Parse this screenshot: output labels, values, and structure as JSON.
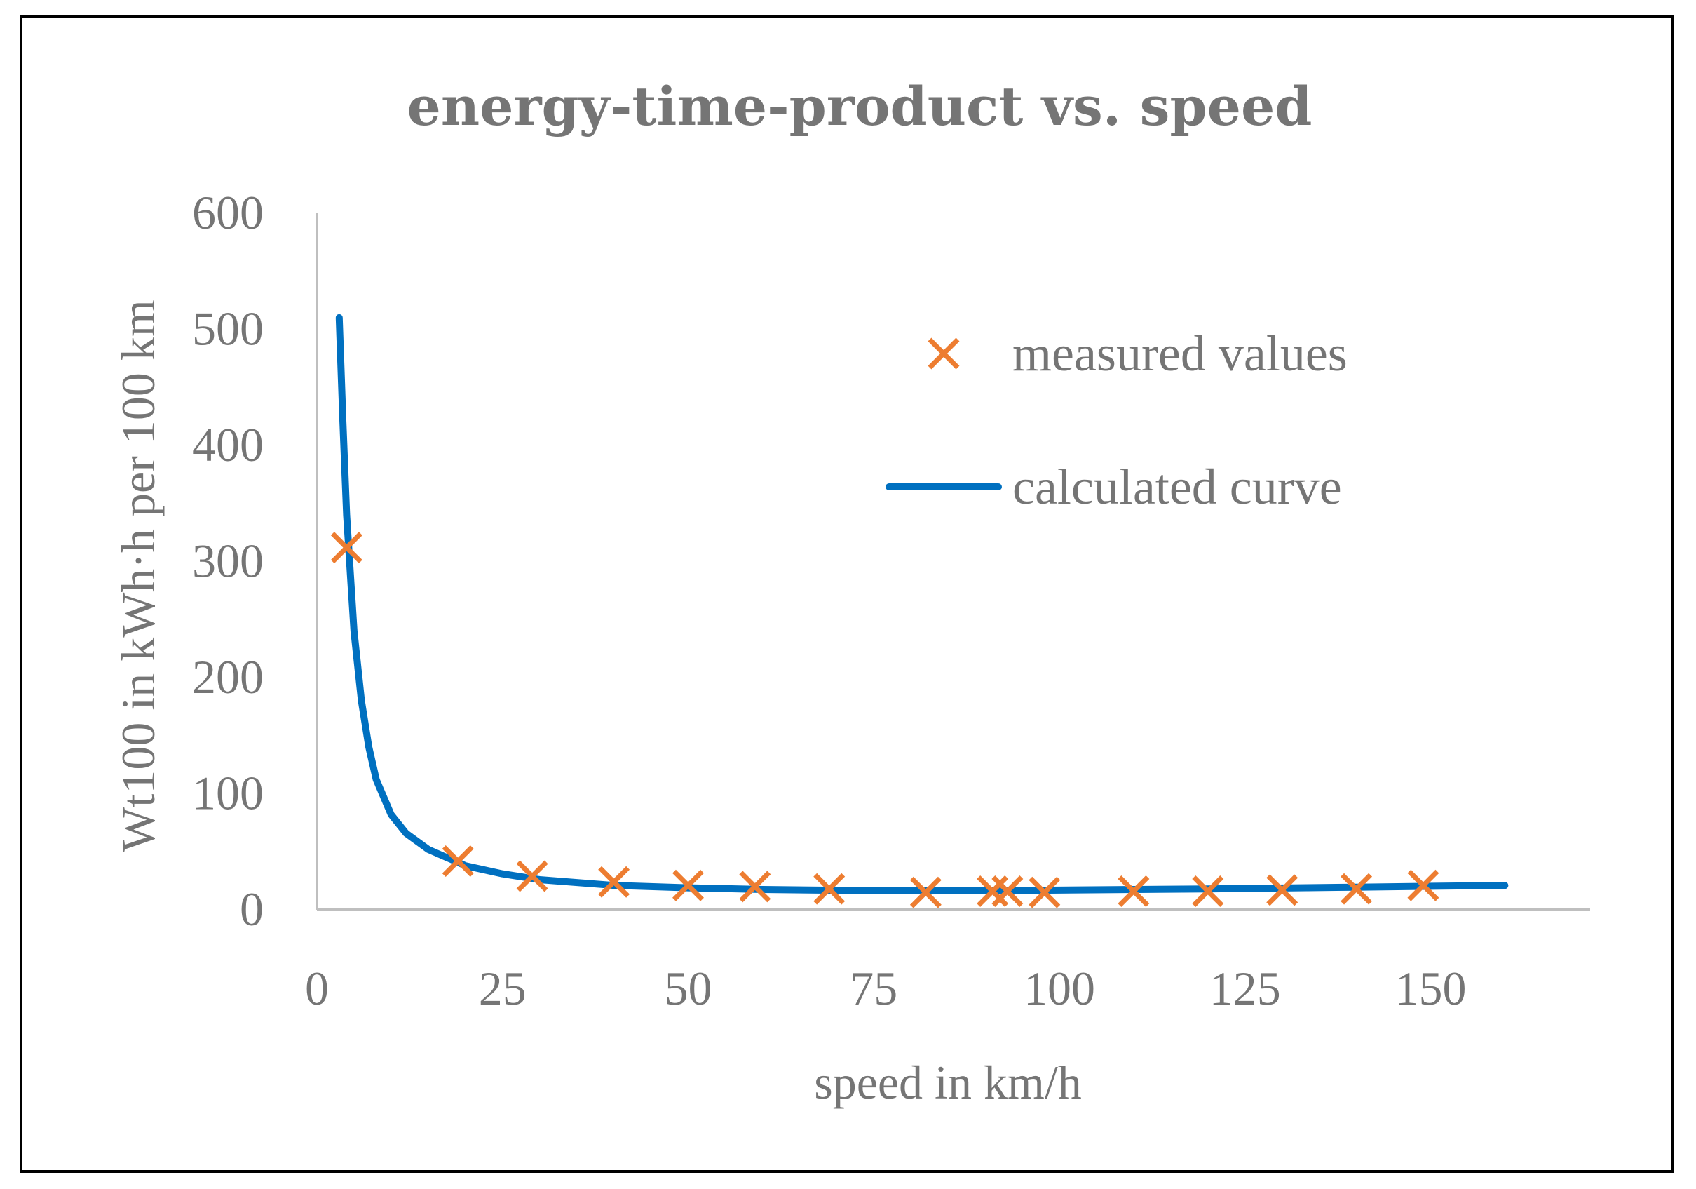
{
  "chart_data": {
    "type": "scatter",
    "title": "energy-time-product vs. speed",
    "xlabel": "speed in km/h",
    "ylabel": "Wt100 in kWh·h per 100 km",
    "xlim": [
      0,
      170
    ],
    "ylim": [
      0,
      600
    ],
    "xticks": [
      "0",
      "25",
      "50",
      "75",
      "100",
      "125",
      "150"
    ],
    "yticks": [
      "0",
      "100",
      "200",
      "300",
      "400",
      "500",
      "600"
    ],
    "grid": false,
    "legend_position": "top-right",
    "series": [
      {
        "name": "measured values",
        "kind": "markers",
        "marker": "x",
        "color": "#ED7D31",
        "points": [
          {
            "x": 4,
            "y": 312
          },
          {
            "x": 19,
            "y": 42
          },
          {
            "x": 29,
            "y": 29
          },
          {
            "x": 40,
            "y": 24
          },
          {
            "x": 50,
            "y": 21
          },
          {
            "x": 59,
            "y": 20
          },
          {
            "x": 69,
            "y": 18
          },
          {
            "x": 82,
            "y": 15
          },
          {
            "x": 91,
            "y": 16
          },
          {
            "x": 93,
            "y": 16
          },
          {
            "x": 98,
            "y": 15
          },
          {
            "x": 110,
            "y": 16
          },
          {
            "x": 120,
            "y": 16
          },
          {
            "x": 130,
            "y": 17
          },
          {
            "x": 140,
            "y": 18
          },
          {
            "x": 149,
            "y": 21
          }
        ]
      },
      {
        "name": "calculated curve",
        "kind": "line",
        "color": "#0070C0",
        "points": [
          {
            "x": 3,
            "y": 510
          },
          {
            "x": 3.5,
            "y": 420
          },
          {
            "x": 4,
            "y": 340
          },
          {
            "x": 5,
            "y": 240
          },
          {
            "x": 6,
            "y": 180
          },
          {
            "x": 7,
            "y": 140
          },
          {
            "x": 8,
            "y": 112
          },
          {
            "x": 10,
            "y": 82
          },
          {
            "x": 12,
            "y": 66
          },
          {
            "x": 15,
            "y": 52
          },
          {
            "x": 20,
            "y": 38
          },
          {
            "x": 25,
            "y": 31
          },
          {
            "x": 30,
            "y": 26
          },
          {
            "x": 40,
            "y": 21
          },
          {
            "x": 50,
            "y": 19
          },
          {
            "x": 60,
            "y": 17.5
          },
          {
            "x": 75,
            "y": 16.5
          },
          {
            "x": 90,
            "y": 16.5
          },
          {
            "x": 100,
            "y": 17
          },
          {
            "x": 120,
            "y": 18
          },
          {
            "x": 140,
            "y": 19.5
          },
          {
            "x": 160,
            "y": 21
          }
        ]
      }
    ]
  }
}
